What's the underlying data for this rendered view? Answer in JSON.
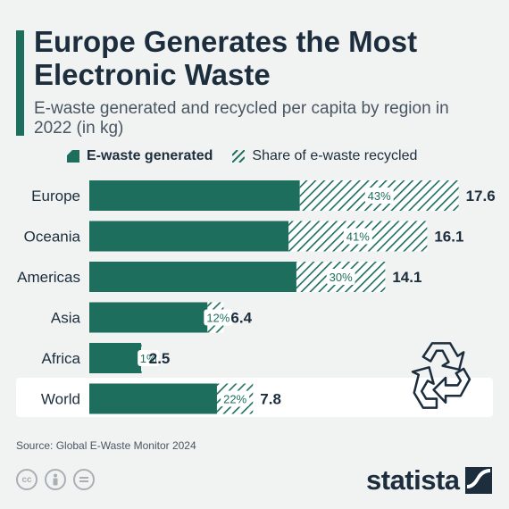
{
  "header": {
    "title": "Europe Generates the Most Electronic Waste",
    "subtitle": "E-waste generated and recycled per capita by region in 2022 (in kg)"
  },
  "legend": {
    "generated": "E-waste generated",
    "recycled": "Share of e-waste recycled"
  },
  "colors": {
    "accent": "#1d6e5d",
    "text": "#1c2d3d"
  },
  "chart_data": {
    "type": "bar",
    "orientation": "horizontal",
    "categories": [
      "Europe",
      "Oceania",
      "Americas",
      "Asia",
      "Africa",
      "World"
    ],
    "series": [
      {
        "name": "E-waste generated",
        "values": [
          17.6,
          16.1,
          14.1,
          6.4,
          2.5,
          7.8
        ]
      },
      {
        "name": "Share of e-waste recycled",
        "values": [
          43,
          41,
          30,
          12,
          1,
          22
        ]
      }
    ],
    "percent_labels": [
      "43%",
      "41%",
      "30%",
      "12%",
      "1%",
      "22%"
    ],
    "value_labels": [
      "17.6",
      "16.1",
      "14.1",
      "6.4",
      "2.5",
      "7.8"
    ],
    "highlight": "World",
    "legend_position": "top",
    "grid": false
  },
  "footer": {
    "source": "Source: Global E-Waste Monitor 2024",
    "logo_text": "statista"
  },
  "icons": {
    "license": [
      "cc-icon",
      "attribution-icon",
      "no-derivatives-icon"
    ],
    "decoration": "recycle-icon"
  }
}
